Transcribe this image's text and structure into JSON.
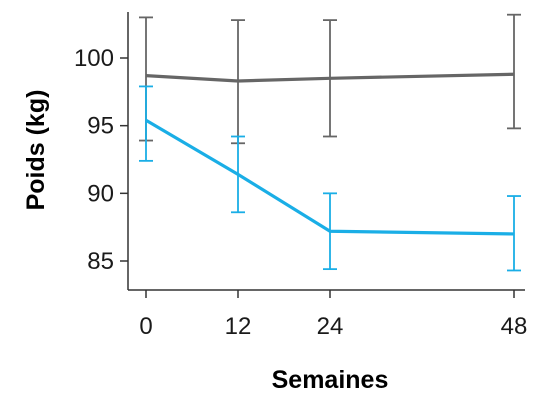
{
  "chart_data": {
    "type": "line",
    "title": "",
    "xlabel": "Semaines",
    "ylabel": "Poids (kg)",
    "x": [
      0,
      12,
      24,
      48
    ],
    "xlim": [
      0,
      48
    ],
    "ylim": [
      82,
      104
    ],
    "yticks": [
      85,
      90,
      95,
      100
    ],
    "grid": false,
    "legend": "none",
    "series": [
      {
        "color": "#666666",
        "values": [
          98.7,
          98.3,
          98.5,
          98.8
        ],
        "error_low": [
          93.9,
          93.7,
          94.2,
          94.8
        ],
        "error_high": [
          103.0,
          102.8,
          102.8,
          103.2
        ]
      },
      {
        "color": "#1aaee6",
        "values": [
          95.4,
          91.4,
          87.2,
          87.0
        ],
        "error_low": [
          92.4,
          88.6,
          84.4,
          84.3
        ],
        "error_high": [
          97.9,
          94.2,
          90.0,
          89.8
        ]
      }
    ]
  }
}
